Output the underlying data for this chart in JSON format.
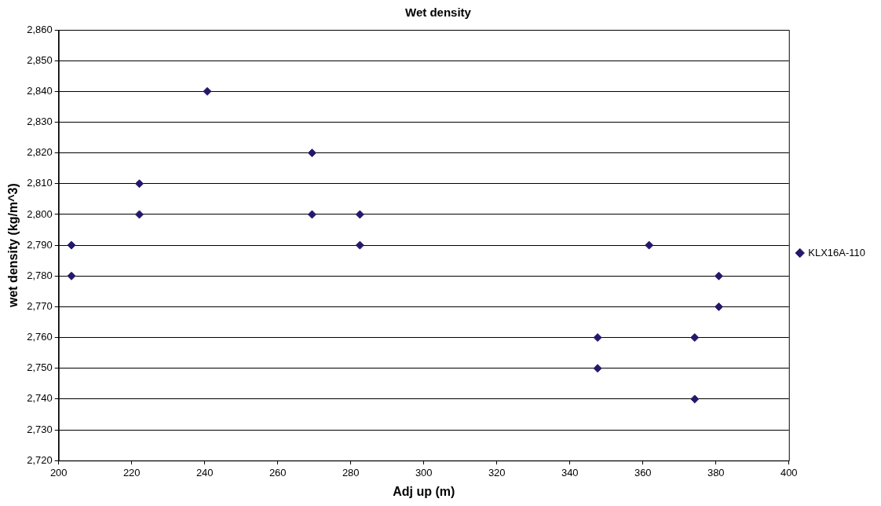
{
  "chart_data": {
    "type": "scatter",
    "title": "Wet density",
    "xlabel": "Adj up (m)",
    "ylabel": "wet density (kg/m^3)",
    "xlim": [
      200,
      400
    ],
    "xticks": [
      200,
      220,
      240,
      260,
      280,
      300,
      320,
      340,
      360,
      380,
      400
    ],
    "ylim": [
      2720,
      2860
    ],
    "yticks": [
      {
        "value": 2720,
        "label": "2,720"
      },
      {
        "value": 2730,
        "label": "2,730"
      },
      {
        "value": 2740,
        "label": "2,740"
      },
      {
        "value": 2750,
        "label": "2,750"
      },
      {
        "value": 2760,
        "label": "2,760"
      },
      {
        "value": 2770,
        "label": "2,770"
      },
      {
        "value": 2780,
        "label": "2,780"
      },
      {
        "value": 2790,
        "label": "2,790"
      },
      {
        "value": 2800,
        "label": "2,800"
      },
      {
        "value": 2810,
        "label": "2,810"
      },
      {
        "value": 2820,
        "label": "2,820"
      },
      {
        "value": 2830,
        "label": "2,830"
      },
      {
        "value": 2840,
        "label": "2,840"
      },
      {
        "value": 2850,
        "label": "2,850"
      },
      {
        "value": 2860,
        "label": "2,860"
      }
    ],
    "grid": "y",
    "legend": "right",
    "marker": "diamond",
    "series": [
      {
        "name": "KLX16A-110",
        "color": "#23196b",
        "x": [
          203.5,
          203.5,
          222.1,
          222.1,
          240.7,
          269.4,
          269.4,
          282.5,
          282.5,
          347.6,
          347.6,
          361.7,
          374.2,
          374.2,
          380.8,
          380.8
        ],
        "values": [
          2790,
          2780,
          2810,
          2800,
          2840,
          2820,
          2800,
          2800,
          2790,
          2760,
          2750,
          2790,
          2760,
          2740,
          2780,
          2770
        ]
      }
    ]
  }
}
